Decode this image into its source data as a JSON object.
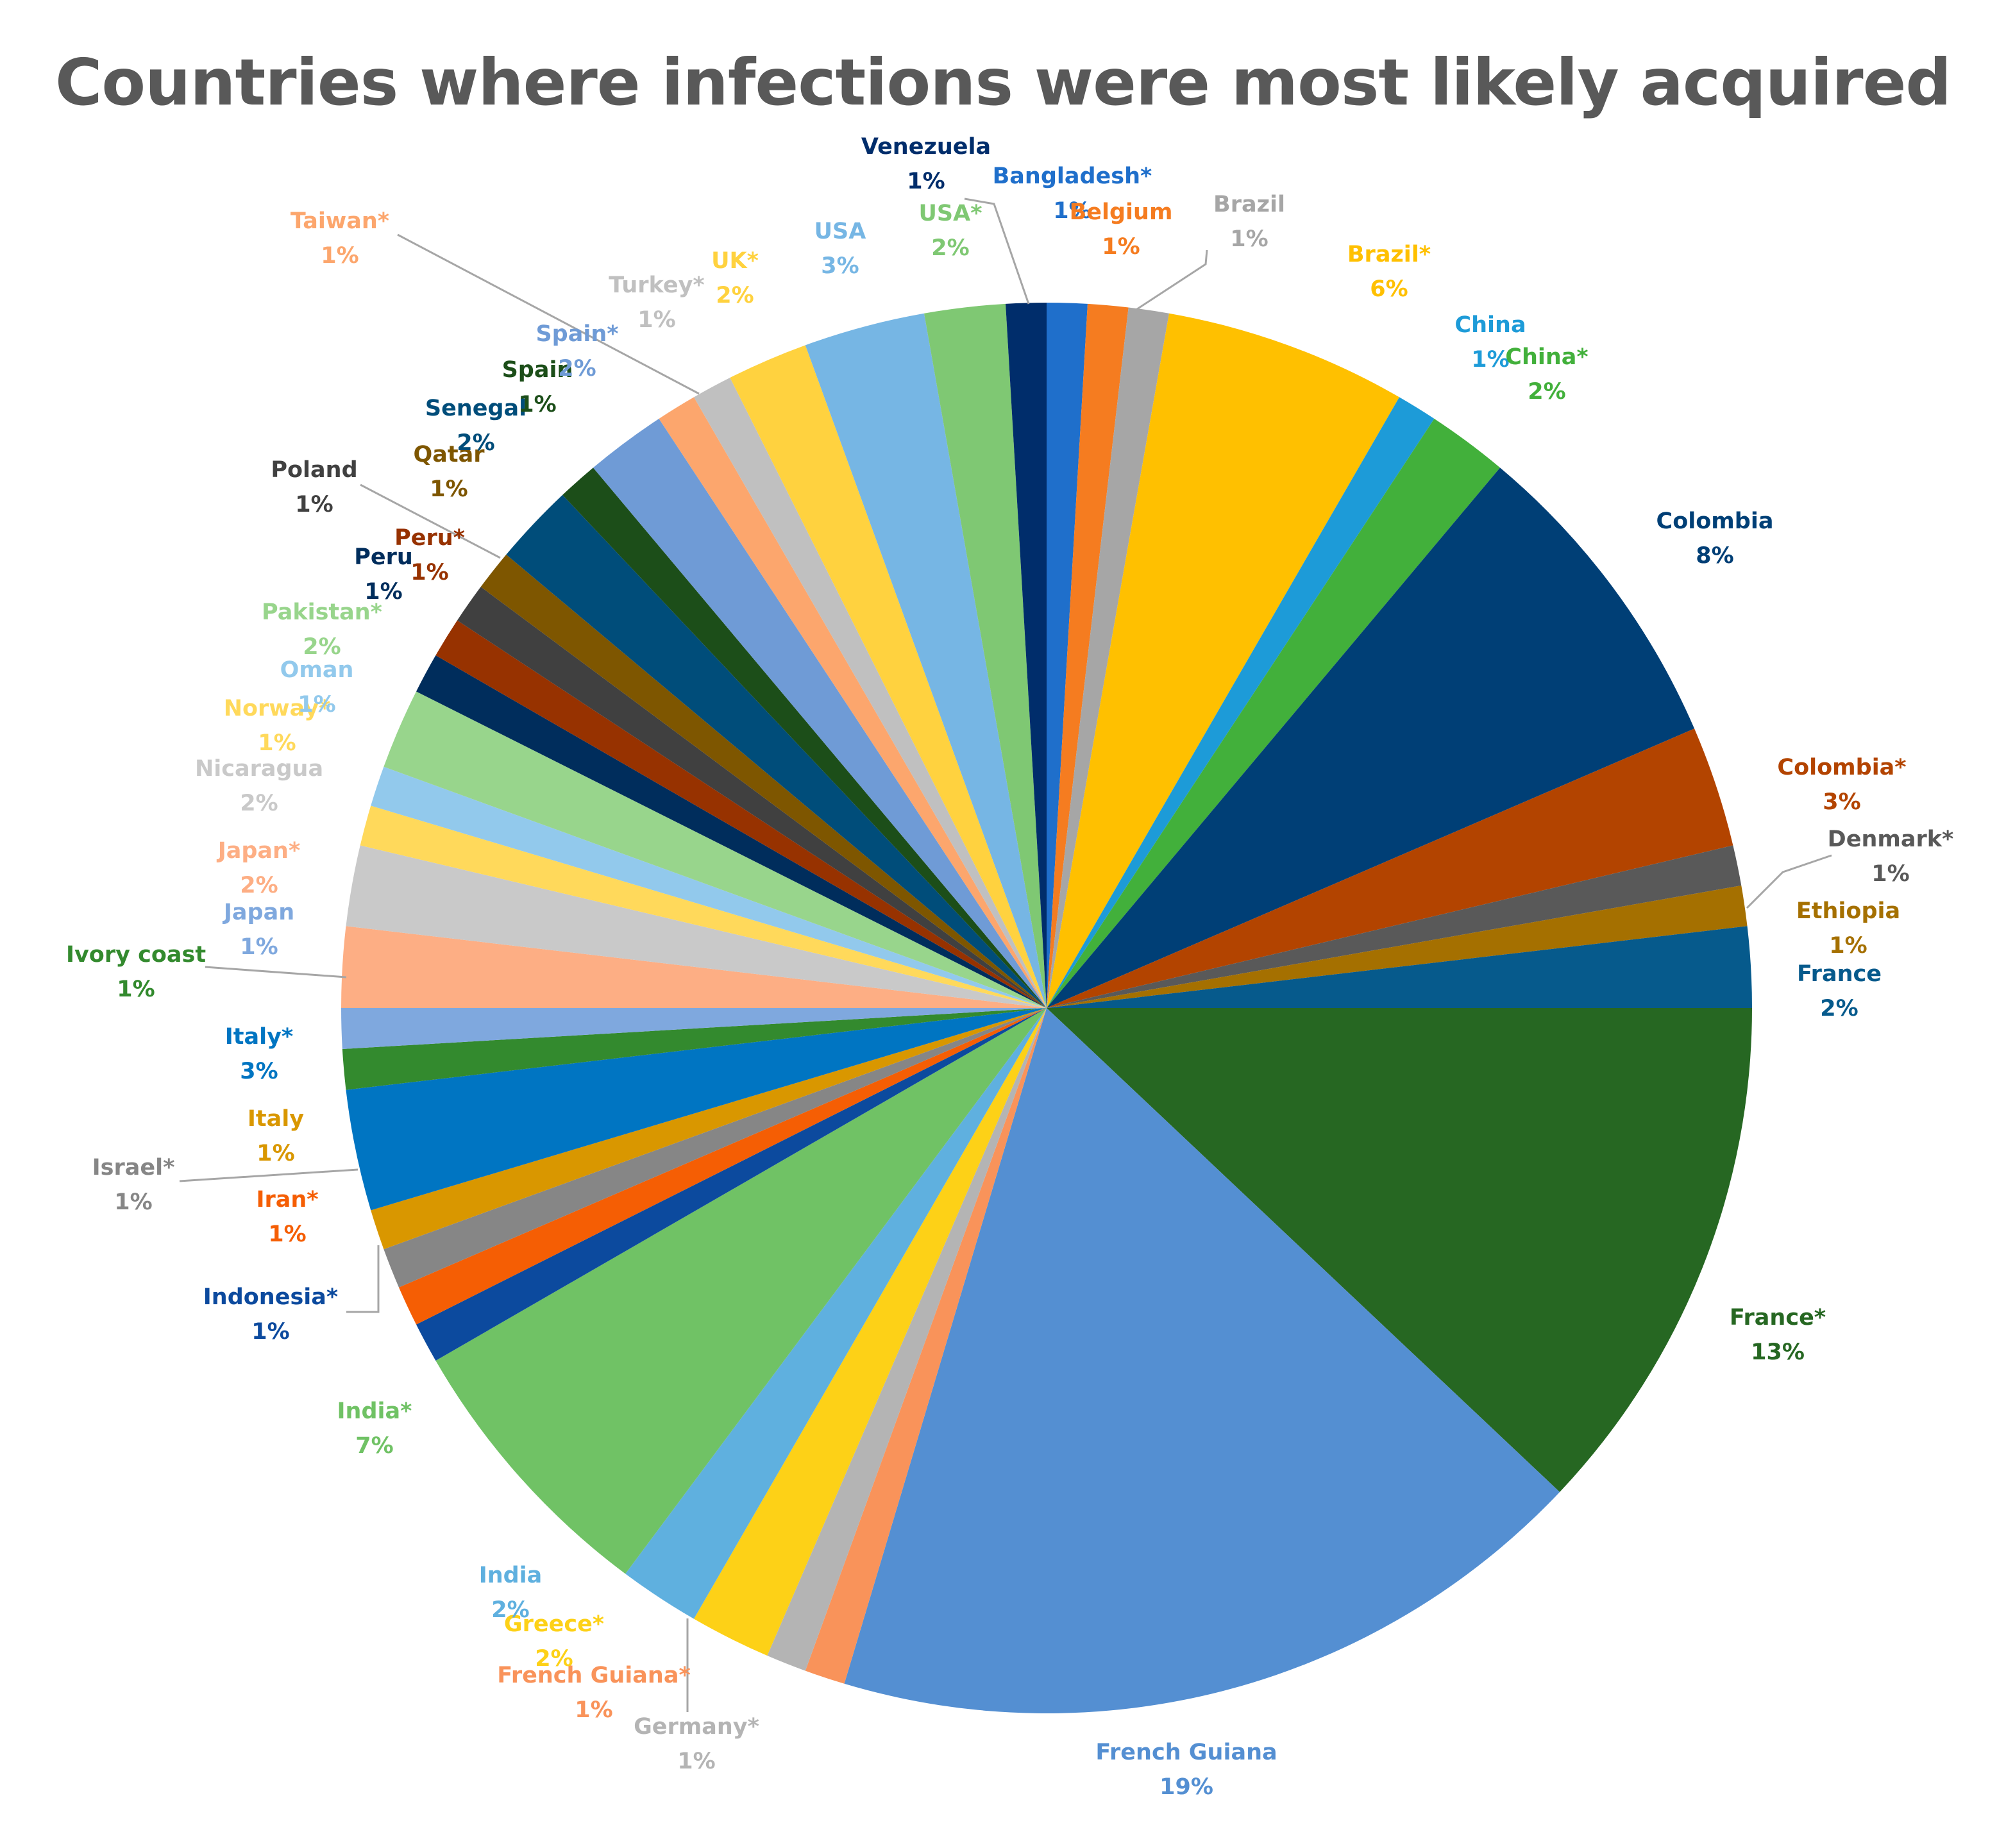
{
  "chart_data": {
    "type": "pie",
    "title": "Countries where infections were most likely acquired",
    "start_angle_deg": 0,
    "direction": "clockwise",
    "slices": [
      {
        "label": "Bangladesh*",
        "value": 1,
        "pct_label": "1%",
        "color": "#1f6fcb"
      },
      {
        "label": "Belgium",
        "value": 1,
        "pct_label": "1%",
        "color": "#f57c20"
      },
      {
        "label": "Brazil",
        "value": 1,
        "pct_label": "1%",
        "color": "#a6a6a6"
      },
      {
        "label": "Brazil*",
        "value": 6,
        "pct_label": "6%",
        "color": "#ffc000"
      },
      {
        "label": "China",
        "value": 1,
        "pct_label": "1%",
        "color": "#1d9bd8"
      },
      {
        "label": "China*",
        "value": 2,
        "pct_label": "2%",
        "color": "#42b03b"
      },
      {
        "label": "Colombia",
        "value": 8,
        "pct_label": "8%",
        "color": "#003f76"
      },
      {
        "label": "Colombia*",
        "value": 3,
        "pct_label": "3%",
        "color": "#b34400"
      },
      {
        "label": "Denmark*",
        "value": 1,
        "pct_label": "1%",
        "color": "#595959"
      },
      {
        "label": "Ethiopia",
        "value": 1,
        "pct_label": "1%",
        "color": "#a57000"
      },
      {
        "label": "France",
        "value": 2,
        "pct_label": "2%",
        "color": "#065a8c"
      },
      {
        "label": "France*",
        "value": 13,
        "pct_label": "13%",
        "color": "#266722"
      },
      {
        "label": "French Guiana",
        "value": 19,
        "pct_label": "19%",
        "color": "#548fd2"
      },
      {
        "label": "French Guiana*",
        "value": 1,
        "pct_label": "1%",
        "color": "#f9935a"
      },
      {
        "label": "Germany*",
        "value": 1,
        "pct_label": "1%",
        "color": "#b4b4b4"
      },
      {
        "label": "Greece*",
        "value": 2,
        "pct_label": "2%",
        "color": "#fdd117"
      },
      {
        "label": "India",
        "value": 2,
        "pct_label": "2%",
        "color": "#5fb0df"
      },
      {
        "label": "India*",
        "value": 7,
        "pct_label": "7%",
        "color": "#70c265"
      },
      {
        "label": "Indonesia*",
        "value": 1,
        "pct_label": "1%",
        "color": "#0c4a9e"
      },
      {
        "label": "Iran*",
        "value": 1,
        "pct_label": "1%",
        "color": "#f55e04"
      },
      {
        "label": "Israel*",
        "value": 1,
        "pct_label": "1%",
        "color": "#868686"
      },
      {
        "label": "Italy",
        "value": 1,
        "pct_label": "1%",
        "color": "#d99700"
      },
      {
        "label": "Italy*",
        "value": 3,
        "pct_label": "3%",
        "color": "#0075c2"
      },
      {
        "label": "Ivory coast",
        "value": 1,
        "pct_label": "1%",
        "color": "#338a2e"
      },
      {
        "label": "Japan",
        "value": 1,
        "pct_label": "1%",
        "color": "#7fa8de"
      },
      {
        "label": "Japan*",
        "value": 2,
        "pct_label": "2%",
        "color": "#fdae84"
      },
      {
        "label": "Nicaragua",
        "value": 2,
        "pct_label": "2%",
        "color": "#c9c9c9"
      },
      {
        "label": "Norway*",
        "value": 1,
        "pct_label": "1%",
        "color": "#ffd95b"
      },
      {
        "label": "Oman",
        "value": 1,
        "pct_label": "1%",
        "color": "#92c9ec"
      },
      {
        "label": "Pakistan*",
        "value": 2,
        "pct_label": "2%",
        "color": "#98d58c"
      },
      {
        "label": "Peru",
        "value": 1,
        "pct_label": "1%",
        "color": "#002d5c"
      },
      {
        "label": "Peru*",
        "value": 1,
        "pct_label": "1%",
        "color": "#973200"
      },
      {
        "label": "Poland",
        "value": 1,
        "pct_label": "1%",
        "color": "#404040"
      },
      {
        "label": "Qatar",
        "value": 1,
        "pct_label": "1%",
        "color": "#7e5600"
      },
      {
        "label": "Senegal",
        "value": 2,
        "pct_label": "2%",
        "color": "#004d7a"
      },
      {
        "label": "Spain",
        "value": 1,
        "pct_label": "1%",
        "color": "#1c4e19"
      },
      {
        "label": "Spain*",
        "value": 2,
        "pct_label": "2%",
        "color": "#6f9bd6"
      },
      {
        "label": "Taiwan*",
        "value": 1,
        "pct_label": "1%",
        "color": "#fca66d"
      },
      {
        "label": "Turkey*",
        "value": 1,
        "pct_label": "1%",
        "color": "#c0c0c0"
      },
      {
        "label": "UK*",
        "value": 2,
        "pct_label": "2%",
        "color": "#ffd23f"
      },
      {
        "label": "USA",
        "value": 3,
        "pct_label": "3%",
        "color": "#76b6e4"
      },
      {
        "label": "USA*",
        "value": 2,
        "pct_label": "2%",
        "color": "#7fc873"
      },
      {
        "label": "Venezuela",
        "value": 1,
        "pct_label": "1%",
        "color": "#002d6b"
      }
    ]
  }
}
